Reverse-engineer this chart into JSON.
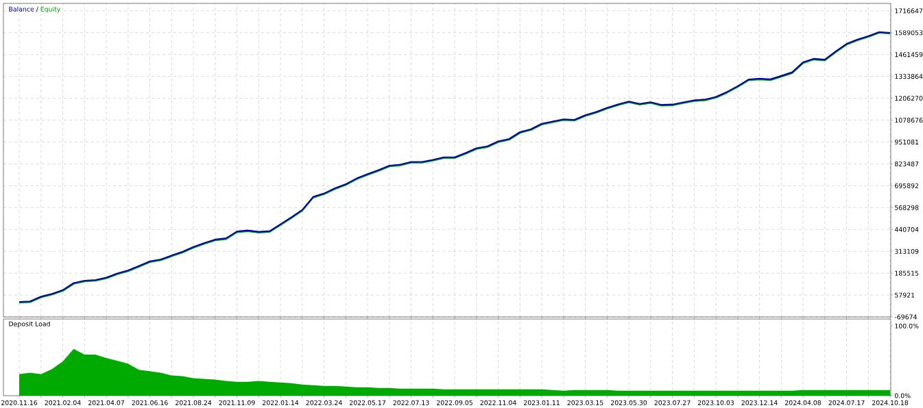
{
  "chart_data": [
    {
      "type": "line",
      "legend": "top left",
      "grid": true,
      "tick_labels": "y",
      "annotations": [
        "/"
      ],
      "categories": [
        "2020.11.16",
        null,
        null,
        null,
        "2021.02.04",
        null,
        null,
        null,
        "2021.04.07",
        null,
        null,
        null,
        "2021.06.16",
        null,
        null,
        null,
        "2021.08.24",
        null,
        null,
        null,
        "2021.11.09",
        null,
        null,
        null,
        "2022.01.14",
        null,
        null,
        null,
        "2022.03.24",
        null,
        null,
        null,
        "2022.05.17",
        null,
        null,
        null,
        "2022.07.13",
        null,
        null,
        null,
        "2022.09.05",
        null,
        null,
        null,
        "2022.11.04",
        null,
        null,
        null,
        "2023.01.11",
        null,
        null,
        null,
        "2023.03.15",
        null,
        null,
        null,
        "2023.05.30",
        null,
        null,
        null,
        "2023.07.27",
        null,
        null,
        null,
        "2023.10.03",
        null,
        null,
        null,
        "2023.12.14",
        null,
        null,
        null,
        "2024.04.08",
        null,
        null,
        null,
        "2024.07.17",
        null,
        null,
        null,
        "2024.10.18"
      ],
      "series": [
        {
          "name": "Equity",
          "color": "#00aa00",
          "values": [
            13000,
            16000,
            44000,
            60000,
            82000,
            123000,
            137000,
            141000,
            155000,
            179000,
            197000,
            223000,
            250000,
            261000,
            284000,
            306000,
            334000,
            357000,
            377000,
            384000,
            424000,
            430000,
            422000,
            426000,
            466000,
            507000,
            550000,
            626000,
            646000,
            676000,
            700000,
            734000,
            759000,
            782000,
            808000,
            814000,
            830000,
            830000,
            842000,
            857000,
            857000,
            882000,
            910000,
            921000,
            950000,
            964000,
            1004000,
            1021000,
            1053000,
            1066000,
            1079000,
            1076000,
            1103000,
            1122000,
            1146000,
            1166000,
            1183000,
            1169000,
            1179000,
            1163000,
            1165000,
            1178000,
            1190000,
            1194000,
            1210000,
            1238000,
            1272000,
            1311000,
            1316000,
            1312000,
            1332000,
            1353000,
            1411000,
            1432000,
            1427000,
            1475000,
            1519000,
            1544000,
            1564000,
            1588000,
            1583000
          ]
        },
        {
          "name": "Balance",
          "color": "#0000aa",
          "values": [
            18000,
            21000,
            49000,
            65000,
            87000,
            128000,
            142000,
            146000,
            160000,
            184000,
            202000,
            228000,
            255000,
            266000,
            289000,
            311000,
            339000,
            362000,
            382000,
            389000,
            429000,
            435000,
            427000,
            431000,
            471000,
            512000,
            555000,
            631000,
            651000,
            681000,
            705000,
            739000,
            764000,
            787000,
            813000,
            819000,
            835000,
            835000,
            847000,
            862000,
            862000,
            887000,
            915000,
            926000,
            955000,
            969000,
            1009000,
            1026000,
            1058000,
            1071000,
            1084000,
            1081000,
            1108000,
            1127000,
            1151000,
            1171000,
            1188000,
            1174000,
            1184000,
            1168000,
            1170000,
            1183000,
            1195000,
            1199000,
            1215000,
            1243000,
            1277000,
            1316000,
            1321000,
            1317000,
            1337000,
            1358000,
            1416000,
            1437000,
            1432000,
            1480000,
            1524000,
            1549000,
            1569000,
            1593000,
            1588000
          ]
        }
      ],
      "ylim": [
        -69674,
        1760000
      ],
      "yticks": [
        -69674,
        57921,
        185515,
        313109,
        440704,
        568298,
        695892,
        823487,
        951081,
        1078676,
        1206270,
        1333864,
        1461459,
        1589053,
        1716647
      ]
    },
    {
      "type": "area",
      "title": "Deposit Load",
      "grid": "x",
      "color": "#00aa00",
      "categories": [
        "2020.11.16",
        null,
        null,
        null,
        "2021.02.04",
        null,
        null,
        null,
        "2021.04.07",
        null,
        null,
        null,
        "2021.06.16",
        null,
        null,
        null,
        "2021.08.24",
        null,
        null,
        null,
        "2021.11.09",
        null,
        null,
        null,
        "2022.01.14",
        null,
        null,
        null,
        "2022.03.24",
        null,
        null,
        null,
        "2022.05.17",
        null,
        null,
        null,
        "2022.07.13",
        null,
        null,
        null,
        "2022.09.05",
        null,
        null,
        null,
        "2022.11.04",
        null,
        null,
        null,
        "2023.01.11",
        null,
        null,
        null,
        "2023.03.15",
        null,
        null,
        null,
        "2023.05.30",
        null,
        null,
        null,
        "2023.07.27",
        null,
        null,
        null,
        "2023.10.03",
        null,
        null,
        null,
        "2023.12.14",
        null,
        null,
        null,
        "2024.04.08",
        null,
        null,
        null,
        "2024.07.17",
        null,
        null,
        null,
        "2024.10.18"
      ],
      "values": [
        31,
        33,
        31,
        38,
        49,
        67,
        59,
        59,
        54,
        50,
        46,
        37,
        35,
        33,
        29,
        28,
        25,
        24,
        23,
        21,
        20,
        20,
        21,
        20,
        19,
        18,
        16,
        15,
        14,
        14,
        13,
        12,
        12,
        11,
        11,
        10,
        10,
        10,
        10,
        9,
        9,
        9,
        9,
        9,
        9,
        9,
        9,
        9,
        9,
        8,
        7,
        8,
        8,
        8,
        8,
        7,
        7,
        7,
        7,
        7,
        7,
        7,
        7,
        7,
        7,
        7,
        7,
        7,
        7,
        7,
        7,
        7,
        8,
        8,
        8,
        8,
        8,
        8,
        8,
        8,
        8
      ],
      "ylim": [
        0,
        110
      ],
      "yticks": [
        {
          "value": 0,
          "label": "0.0%"
        },
        {
          "value": 100,
          "label": "100.0%"
        }
      ]
    }
  ]
}
